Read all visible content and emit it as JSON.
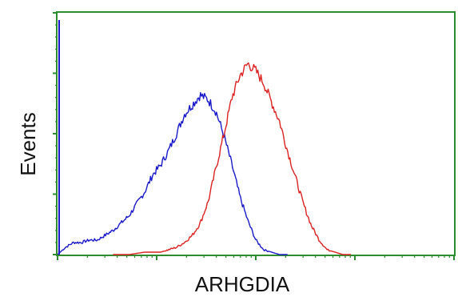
{
  "chart_data": {
    "type": "line",
    "title": "",
    "xlabel": "ARHGDIA",
    "ylabel": "Events",
    "x_scale": "log",
    "xlim": [
      0,
      1
    ],
    "ylim": [
      0,
      1
    ],
    "grid": false,
    "legend": "none",
    "x_ticks": [
      "",
      "",
      "",
      "",
      ""
    ],
    "y_ticks": [
      "",
      "",
      "",
      ""
    ],
    "series": [
      {
        "color": "#1a1acc",
        "x": [
          0.0,
          0.02,
          0.04,
          0.06,
          0.08,
          0.1,
          0.12,
          0.14,
          0.16,
          0.18,
          0.2,
          0.22,
          0.24,
          0.26,
          0.28,
          0.3,
          0.32,
          0.34,
          0.36,
          0.38,
          0.4,
          0.42,
          0.44,
          0.46,
          0.48,
          0.5,
          0.52,
          0.54,
          0.56,
          0.58
        ],
        "y": [
          0.0,
          0.03,
          0.05,
          0.05,
          0.06,
          0.06,
          0.08,
          0.1,
          0.13,
          0.16,
          0.21,
          0.26,
          0.33,
          0.37,
          0.43,
          0.5,
          0.58,
          0.62,
          0.66,
          0.64,
          0.59,
          0.49,
          0.37,
          0.24,
          0.14,
          0.06,
          0.02,
          0.01,
          0.0,
          0.0
        ]
      },
      {
        "color": "#dd2222",
        "x": [
          0.14,
          0.18,
          0.22,
          0.26,
          0.28,
          0.3,
          0.32,
          0.34,
          0.36,
          0.38,
          0.4,
          0.42,
          0.44,
          0.46,
          0.48,
          0.5,
          0.52,
          0.54,
          0.56,
          0.58,
          0.6,
          0.62,
          0.64,
          0.66,
          0.68,
          0.7,
          0.72,
          0.74
        ],
        "y": [
          0.0,
          0.0,
          0.01,
          0.01,
          0.02,
          0.03,
          0.05,
          0.08,
          0.13,
          0.22,
          0.36,
          0.5,
          0.65,
          0.74,
          0.79,
          0.76,
          0.71,
          0.63,
          0.55,
          0.43,
          0.32,
          0.21,
          0.12,
          0.06,
          0.02,
          0.01,
          0.0,
          0.0
        ]
      }
    ]
  }
}
